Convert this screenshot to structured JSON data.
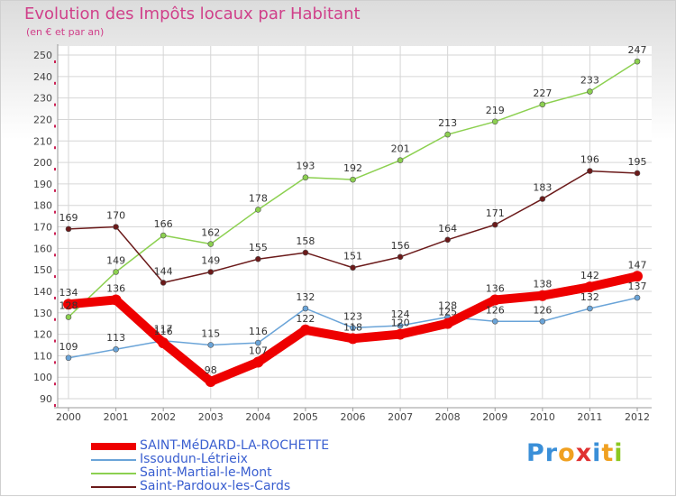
{
  "title": "Evolution des Impôts locaux par Habitant",
  "subtitle": "(en € et par an)",
  "logo": {
    "letters": [
      "P",
      "r",
      "o",
      "x",
      "i",
      "t",
      "i"
    ],
    "colors": [
      "#3a8fd8",
      "#3a8fd8",
      "#f0a020",
      "#e03030",
      "#3a8fd8",
      "#f0a020",
      "#8cc820"
    ]
  },
  "chart_data": {
    "type": "line",
    "title": "Evolution des Impôts locaux par Habitant",
    "subtitle": "(en € et par an)",
    "xlabel": "",
    "ylabel": "",
    "x": [
      "2000",
      "2001",
      "2002",
      "2003",
      "2004",
      "2005",
      "2006",
      "2007",
      "2008",
      "2009",
      "2010",
      "2011",
      "2012"
    ],
    "ylim": [
      90,
      250
    ],
    "yticks": [
      "90",
      "100",
      "110",
      "120",
      "130",
      "140",
      "150",
      "160",
      "170",
      "180",
      "190",
      "200",
      "210",
      "220",
      "230",
      "240",
      "250"
    ],
    "grid": true,
    "legend": "bottom-left",
    "series": [
      {
        "name": "SAINT-MéDARD-LA-ROCHETTE",
        "color": "#ee0000",
        "values": [
          134,
          136,
          116,
          98,
          107,
          122,
          118,
          120,
          125,
          136,
          138,
          142,
          147
        ]
      },
      {
        "name": "Issoudun-Létrieix",
        "color": "#6aa4d8",
        "values": [
          109,
          113,
          117,
          115,
          116,
          132,
          123,
          124,
          128,
          126,
          126,
          132,
          137
        ]
      },
      {
        "name": "Saint-Martial-le-Mont",
        "color": "#8cd050",
        "values": [
          128,
          149,
          166,
          162,
          178,
          193,
          192,
          201,
          213,
          219,
          227,
          233,
          247
        ]
      },
      {
        "name": "Saint-Pardoux-les-Cards",
        "color": "#6b1a1a",
        "values": [
          169,
          170,
          144,
          149,
          155,
          158,
          151,
          156,
          164,
          171,
          183,
          196,
          195
        ]
      }
    ]
  }
}
